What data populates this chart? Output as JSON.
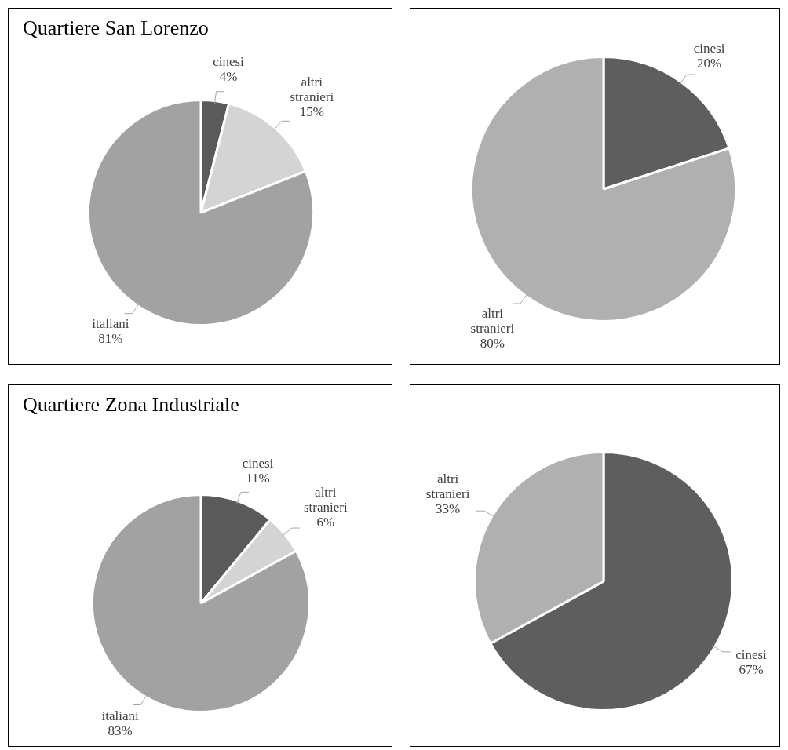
{
  "chart_data": [
    {
      "type": "pie",
      "title": "Quartiere San Lorenzo",
      "categories": [
        "cinesi",
        "altri stranieri",
        "italiani"
      ],
      "values": [
        4,
        15,
        81
      ],
      "colors": [
        "#5a5a5a",
        "#d4d4d4",
        "#a2a2a2"
      ],
      "value_labels": [
        "4%",
        "15%",
        "81%"
      ],
      "legend": false
    },
    {
      "type": "pie",
      "categories": [
        "cinesi",
        "altri stranieri"
      ],
      "values": [
        20,
        80
      ],
      "colors": [
        "#5e5e5e",
        "#b0b0b0"
      ],
      "value_labels": [
        "20%",
        "80%"
      ],
      "legend": false
    },
    {
      "type": "pie",
      "title": "Quartiere Zona Industriale",
      "categories": [
        "cinesi",
        "altri stranieri",
        "italiani"
      ],
      "values": [
        11,
        6,
        83
      ],
      "colors": [
        "#5a5a5a",
        "#d4d4d4",
        "#a2a2a2"
      ],
      "value_labels": [
        "11%",
        "6%",
        "83%"
      ],
      "legend": false
    },
    {
      "type": "pie",
      "categories": [
        "cinesi",
        "altri stranieri"
      ],
      "values": [
        67,
        33
      ],
      "colors": [
        "#5e5e5e",
        "#b0b0b0"
      ],
      "value_labels": [
        "67%",
        "33%"
      ],
      "legend": false
    }
  ]
}
